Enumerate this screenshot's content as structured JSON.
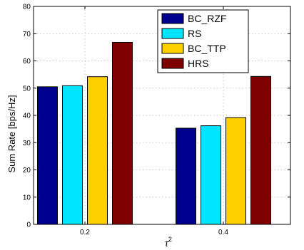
{
  "chart_data": {
    "type": "bar",
    "xlabel": "τ",
    "xlabel_superscript": "2",
    "ylabel": "Sum Rate [bps/Hz]",
    "categories": [
      "0.2",
      "0.4"
    ],
    "ylim": [
      0,
      80
    ],
    "yticks": [
      "0",
      "10",
      "20",
      "30",
      "40",
      "50",
      "60",
      "70",
      "80"
    ],
    "grid": true,
    "legend_position": "top-right",
    "series": [
      {
        "name": "BC_RZF",
        "color": "#00008f",
        "values": [
          50.5,
          35.3
        ]
      },
      {
        "name": "RS",
        "color": "#00e5ff",
        "values": [
          50.9,
          36.2
        ]
      },
      {
        "name": "BC_TTP",
        "color": "#ffcf00",
        "values": [
          54.2,
          39.2
        ]
      },
      {
        "name": "HRS",
        "color": "#7f0000",
        "values": [
          66.8,
          54.3
        ]
      }
    ]
  }
}
